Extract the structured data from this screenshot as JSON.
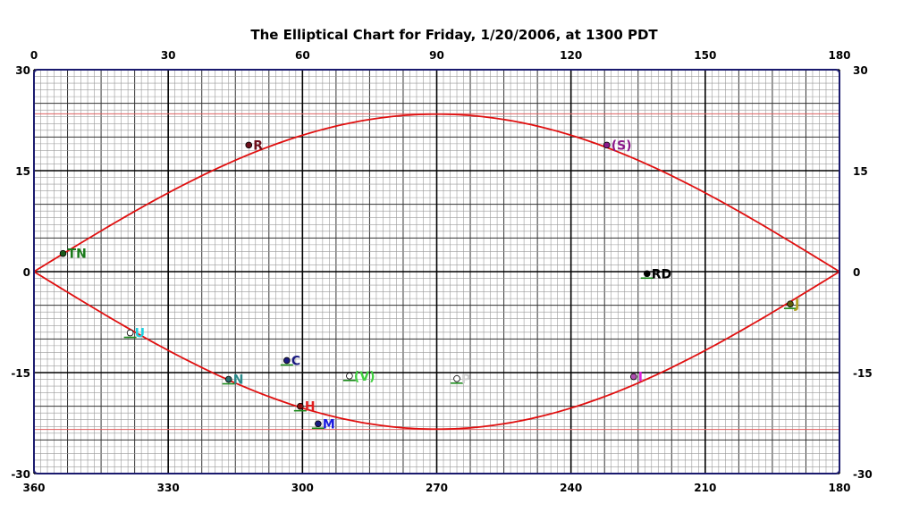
{
  "chart_data": {
    "type": "scatter",
    "title": "The Elliptical Chart for Friday, 1/20/2006, at 1300 PDT",
    "x_top_ticks": [
      "0",
      "30",
      "60",
      "90",
      "120",
      "150",
      "180"
    ],
    "x_bottom_ticks": [
      "360",
      "330",
      "300",
      "270",
      "240",
      "210",
      "180"
    ],
    "y_ticks": [
      "30",
      "15",
      "0",
      "-15",
      "-30"
    ],
    "xlim": [
      0,
      180
    ],
    "ylim": [
      -30,
      30
    ],
    "grid": true,
    "colors": {
      "grid_fine": "#9a9a9a",
      "grid_major": "#000000",
      "curve": "#e01010",
      "tropic": "#e06060",
      "frame": "#1a1a6e"
    },
    "tropics": [
      23.44,
      -23.44
    ],
    "upper_curve": {
      "y_at_90": 23.4
    },
    "lower_curve": {
      "y_at_90": -23.4
    },
    "points": [
      {
        "label": "R",
        "x": 48,
        "y": 18.8,
        "color": "#6b0f1a",
        "fill": "#6b0f1a",
        "underline": false
      },
      {
        "label": "(S)",
        "x": 128,
        "y": 18.8,
        "color": "#8b1a8b",
        "fill": "#8b1a8b",
        "underline": false
      },
      {
        "label": "TN",
        "x": 6.5,
        "y": 2.7,
        "color": "#1a7a1a",
        "fill": "#1a5a1a",
        "underline": false
      },
      {
        "label": "RD",
        "x": 137,
        "y": -0.3,
        "color": "#000000",
        "fill": "#000000",
        "underline": true
      },
      {
        "label": "J",
        "x": 169,
        "y": -4.8,
        "color": "#b0a020",
        "fill": "#606010",
        "underline": true
      },
      {
        "label": "U",
        "x": 21.5,
        "y": -9.1,
        "color": "#20d0e0",
        "fill": "#ffffff",
        "underline": true
      },
      {
        "label": "C",
        "x": 56.5,
        "y": -13.2,
        "color": "#1a1a80",
        "fill": "#1a1a80",
        "underline": true
      },
      {
        "label": "N",
        "x": 43.5,
        "y": -16.0,
        "color": "#2a8a8a",
        "fill": "#2a6a6a",
        "underline": true
      },
      {
        "label": "(V)",
        "x": 70.5,
        "y": -15.5,
        "color": "#40d040",
        "fill": "#ffffff",
        "underline": true
      },
      {
        "label": "P",
        "x": 94.5,
        "y": -15.9,
        "color": "#d0d0d0",
        "fill": "#ffffff",
        "underline": true
      },
      {
        "label": "I",
        "x": 134,
        "y": -15.6,
        "color": "#e020e0",
        "fill": "#b050b0",
        "underline": false
      },
      {
        "label": "H",
        "x": 59.5,
        "y": -20.0,
        "color": "#e02020",
        "fill": "#8b1010",
        "underline": true
      },
      {
        "label": "M",
        "x": 63.5,
        "y": -22.6,
        "color": "#1a1ae0",
        "fill": "#1a1a80",
        "underline": true
      }
    ]
  }
}
